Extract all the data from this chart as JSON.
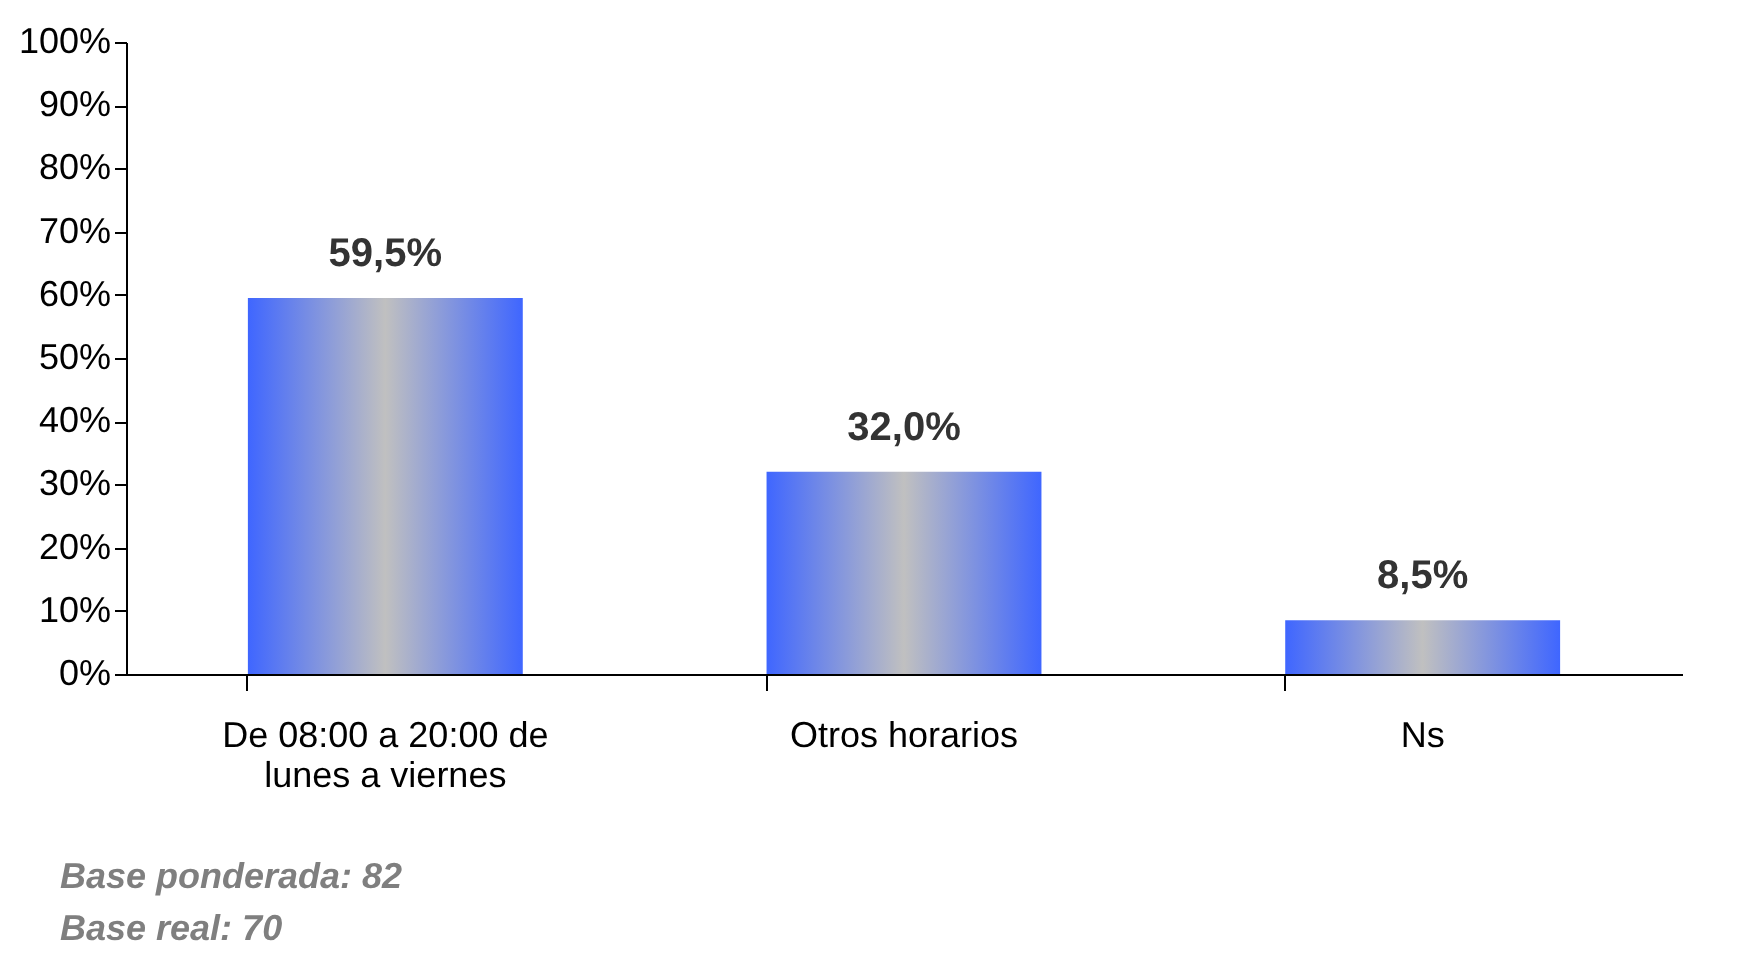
{
  "chart_data": {
    "type": "bar",
    "categories": [
      "De 08:00 a 20:00 de lunes a viernes",
      "Otros horarios",
      "Ns"
    ],
    "values": [
      59.5,
      32.0,
      8.5
    ],
    "value_labels": [
      "59,5%",
      "32,0%",
      "8,5%"
    ],
    "color": "#3f66ff",
    "ylim": [
      0,
      100
    ],
    "yticks": [
      {
        "value": 0,
        "label": "0%"
      },
      {
        "value": 10,
        "label": "10%"
      },
      {
        "value": 20,
        "label": "20%"
      },
      {
        "value": 30,
        "label": "30%"
      },
      {
        "value": 40,
        "label": "40%"
      },
      {
        "value": 50,
        "label": "50%"
      },
      {
        "value": 60,
        "label": "60%"
      },
      {
        "value": 70,
        "label": "70%"
      },
      {
        "value": 80,
        "label": "80%"
      },
      {
        "value": 90,
        "label": "90%"
      },
      {
        "value": 100,
        "label": "100%"
      }
    ],
    "grid": false,
    "annotations": [
      "Base ponderada: 82",
      "Base real: 70"
    ]
  }
}
